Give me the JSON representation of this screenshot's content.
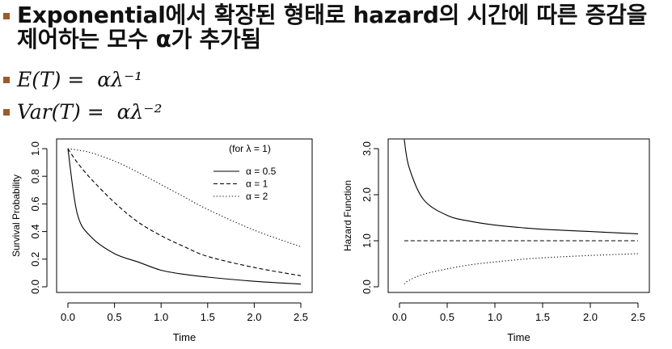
{
  "slide": {
    "bullets": [
      {
        "text": "Exponential에서 확장된 형태로 hazard의 시간에 따른 증감을 제어하는 모수 α가 추가됨",
        "kind": "text"
      },
      {
        "text": "E(T) =  αλ⁻¹",
        "kind": "math"
      },
      {
        "text": "Var(T) =  αλ⁻²",
        "kind": "math"
      }
    ],
    "colors": {
      "bullet": "#9b5a2a",
      "text": "#111111"
    }
  },
  "chart_data": [
    {
      "type": "line",
      "xlabel": "Time",
      "ylabel": "Survival Probability",
      "xlim": [
        0,
        2.5
      ],
      "ylim": [
        0,
        1.0
      ],
      "xticks": [
        "0.0",
        "0.5",
        "1.0",
        "1.5",
        "2.0",
        "2.5"
      ],
      "yticks": [
        "0.0",
        "0.2",
        "0.4",
        "0.6",
        "0.8",
        "1.0"
      ],
      "legend": {
        "title": "(for λ = 1)",
        "entries": [
          "α = 0.5",
          "α = 1",
          "α = 2"
        ],
        "styles": [
          "solid",
          "dashed",
          "dotted"
        ],
        "position": "top-right"
      },
      "x": [
        0.0,
        0.1,
        0.25,
        0.5,
        0.75,
        1.0,
        1.25,
        1.5,
        2.0,
        2.5
      ],
      "series": [
        {
          "name": "α = 0.5",
          "style": "solid",
          "values": [
            1.0,
            0.53,
            0.36,
            0.24,
            0.18,
            0.12,
            0.09,
            0.07,
            0.04,
            0.02
          ]
        },
        {
          "name": "α = 1",
          "style": "dashed",
          "values": [
            1.0,
            0.9,
            0.78,
            0.61,
            0.47,
            0.37,
            0.29,
            0.22,
            0.14,
            0.08
          ]
        },
        {
          "name": "α = 2",
          "style": "dotted",
          "values": [
            1.0,
            0.99,
            0.97,
            0.91,
            0.83,
            0.74,
            0.65,
            0.56,
            0.41,
            0.29
          ]
        }
      ]
    },
    {
      "type": "line",
      "xlabel": "Time",
      "ylabel": "Hazard Function",
      "xlim": [
        0,
        2.5
      ],
      "ylim": [
        0,
        3.0
      ],
      "xticks": [
        "0.0",
        "0.5",
        "1.0",
        "1.5",
        "2.0",
        "2.5"
      ],
      "yticks": [
        "0.0",
        "1.0",
        "2.0",
        "3.0"
      ],
      "x": [
        0.05,
        0.1,
        0.25,
        0.5,
        0.75,
        1.0,
        1.25,
        1.5,
        2.0,
        2.5
      ],
      "series": [
        {
          "style": "solid",
          "values": [
            3.2,
            2.6,
            1.9,
            1.55,
            1.42,
            1.34,
            1.29,
            1.25,
            1.2,
            1.15
          ]
        },
        {
          "style": "dashed",
          "values": [
            1.0,
            1.0,
            1.0,
            1.0,
            1.0,
            1.0,
            1.0,
            1.0,
            1.0,
            1.0
          ]
        },
        {
          "style": "dotted",
          "values": [
            0.06,
            0.14,
            0.27,
            0.39,
            0.48,
            0.54,
            0.59,
            0.63,
            0.68,
            0.72
          ]
        }
      ]
    }
  ]
}
